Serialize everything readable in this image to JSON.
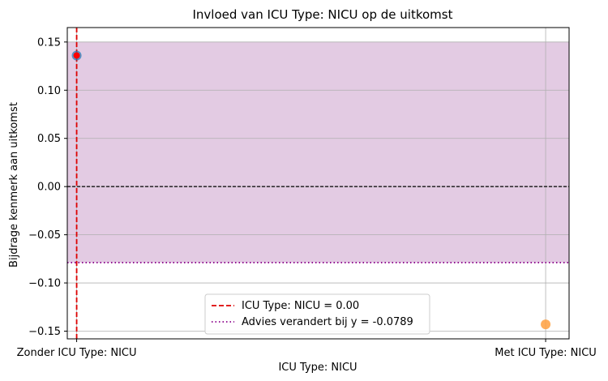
{
  "chart_data": {
    "type": "scatter",
    "title": "Invloed van ICU Type: NICU op de uitkomst",
    "xlabel": "ICU Type: NICU",
    "ylabel": "Bijdrage kenmerk aan uitkomst",
    "x_categories": [
      "Zonder ICU Type: NICU",
      "Met ICU Type: NICU"
    ],
    "x_range": [
      -0.02,
      1.05
    ],
    "ylim": [
      -0.158,
      0.165
    ],
    "yticks": [
      -0.15,
      -0.1,
      -0.05,
      0.0,
      0.05,
      0.1,
      0.15
    ],
    "ytick_labels": [
      "−0.15",
      "−0.10",
      "−0.05",
      "0.00",
      "0.05",
      "0.10",
      "0.15"
    ],
    "grid": true,
    "points": [
      {
        "x": 0,
        "y": 0.136,
        "color": "#1f77b4",
        "highlight_color": "#ff0000"
      },
      {
        "x": 1,
        "y": -0.143,
        "color": "#ffa040"
      }
    ],
    "shaded_region": {
      "y_from": -0.0789,
      "y_to": 0.15,
      "color": "#e3cbe3"
    },
    "zero_line": {
      "y": 0.0,
      "color": "#000000"
    },
    "vline": {
      "x": 0.0,
      "color": "#dd0000",
      "label": "ICU Type: NICU = 0.00"
    },
    "hline": {
      "y": -0.0789,
      "color": "#8b008b",
      "label": "Advies verandert bij y = -0.0789"
    },
    "legend": {
      "position": "lower-center",
      "entries": [
        {
          "label": "ICU Type: NICU = 0.00",
          "style": "dashed",
          "color": "#dd0000"
        },
        {
          "label": "Advies verandert bij y = -0.0789",
          "style": "dotted",
          "color": "#8b008b"
        }
      ]
    }
  }
}
